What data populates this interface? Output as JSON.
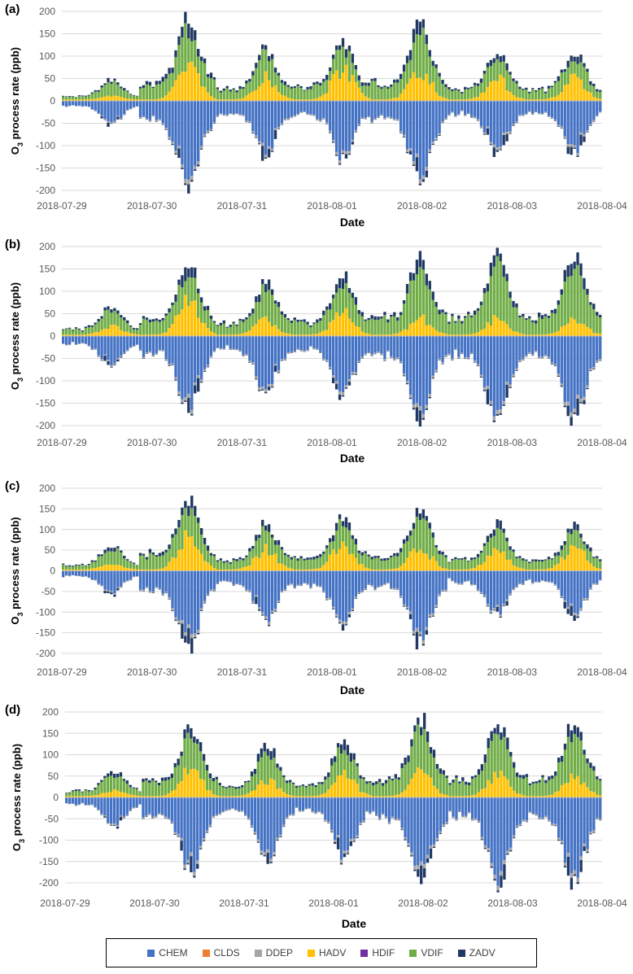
{
  "colors": {
    "CHEM": "#4472C4",
    "CLDS": "#ED7D31",
    "DDEP": "#A5A5A5",
    "HADV": "#FFC000",
    "HDIF": "#7030A0",
    "VDIF": "#70AD47",
    "ZADV": "#203864"
  },
  "legend": {
    "items": [
      "CHEM",
      "CLDS",
      "DDEP",
      "HADV",
      "HDIF",
      "VDIF",
      "ZADV"
    ]
  },
  "chart_data": [
    {
      "panel": "(a)",
      "type": "bar",
      "stacked": true,
      "ylabel": "O3 process rate (ppb)",
      "xlabel": "Date",
      "ylim": [
        -200,
        200
      ],
      "yticks": [
        200,
        150,
        100,
        50,
        0,
        -50,
        -100,
        -150,
        -200
      ],
      "xtick_labels": [
        "2018-07-29",
        "2018-07-30",
        "2018-07-31",
        "2018-08-01",
        "2018-08-02",
        "2018-08-03",
        "2018-08-04"
      ],
      "daily_peaks": [
        {
          "pos_peak": 50,
          "neg_peak": -55,
          "hadv_peak": 8
        },
        {
          "pos_peak": 190,
          "neg_peak": -200,
          "hadv_peak": 105
        },
        {
          "pos_peak": 120,
          "neg_peak": -130,
          "hadv_peak": 55
        },
        {
          "pos_peak": 140,
          "neg_peak": -135,
          "hadv_peak": 80
        },
        {
          "pos_peak": 180,
          "neg_peak": -185,
          "hadv_peak": 75
        },
        {
          "pos_peak": 115,
          "neg_peak": -125,
          "hadv_peak": 50
        }
      ]
    },
    {
      "panel": "(b)",
      "type": "bar",
      "stacked": true,
      "ylabel": "O3 process rate (ppb)",
      "xlabel": "Date",
      "ylim": [
        -200,
        200
      ],
      "yticks": [
        200,
        150,
        100,
        50,
        0,
        -50,
        -100,
        -150,
        -200
      ],
      "xtick_labels": [
        "2018-07-29",
        "2018-07-30",
        "2018-07-31",
        "2018-08-01",
        "2018-08-02",
        "2018-08-03",
        "2018-08-04"
      ],
      "daily_peaks": [
        {
          "pos_peak": 70,
          "neg_peak": -75,
          "hadv_peak": 20
        },
        {
          "pos_peak": 168,
          "neg_peak": -170,
          "hadv_peak": 80
        },
        {
          "pos_peak": 120,
          "neg_peak": -130,
          "hadv_peak": 35
        },
        {
          "pos_peak": 140,
          "neg_peak": -135,
          "hadv_peak": 60
        },
        {
          "pos_peak": 185,
          "neg_peak": -185,
          "hadv_peak": 40
        },
        {
          "pos_peak": 185,
          "neg_peak": -198,
          "hadv_peak": 40
        }
      ]
    },
    {
      "panel": "(c)",
      "type": "bar",
      "stacked": true,
      "ylabel": "O3 process rate (ppb)",
      "xlabel": "Date",
      "ylim": [
        -200,
        200
      ],
      "yticks": [
        200,
        150,
        100,
        50,
        0,
        -50,
        -100,
        -150,
        -200
      ],
      "xtick_labels": [
        "2018-07-29",
        "2018-07-30",
        "2018-07-31",
        "2018-08-01",
        "2018-08-02",
        "2018-08-03",
        "2018-08-04"
      ],
      "daily_peaks": [
        {
          "pos_peak": 65,
          "neg_peak": -60,
          "hadv_peak": 15
        },
        {
          "pos_peak": 175,
          "neg_peak": -198,
          "hadv_peak": 95
        },
        {
          "pos_peak": 118,
          "neg_peak": -128,
          "hadv_peak": 55
        },
        {
          "pos_peak": 130,
          "neg_peak": -140,
          "hadv_peak": 70
        },
        {
          "pos_peak": 155,
          "neg_peak": -180,
          "hadv_peak": 60
        },
        {
          "pos_peak": 115,
          "neg_peak": -115,
          "hadv_peak": 60
        }
      ]
    },
    {
      "panel": "(d)",
      "type": "bar",
      "stacked": true,
      "ylabel": "O3 process rate (ppb)",
      "xlabel": "Date",
      "ylim": [
        -200,
        200
      ],
      "yticks": [
        200,
        150,
        100,
        50,
        0,
        -50,
        -100,
        -150,
        -200
      ],
      "xtick_labels": [
        "2018-07-29",
        "2018-07-30",
        "2018-07-31",
        "2018-08-01",
        "2018-08-02",
        "2018-08-03",
        "2018-08-04"
      ],
      "daily_peaks": [
        {
          "pos_peak": 65,
          "neg_peak": -70,
          "hadv_peak": 15
        },
        {
          "pos_peak": 170,
          "neg_peak": -180,
          "hadv_peak": 70
        },
        {
          "pos_peak": 130,
          "neg_peak": -150,
          "hadv_peak": 40
        },
        {
          "pos_peak": 140,
          "neg_peak": -150,
          "hadv_peak": 55
        },
        {
          "pos_peak": 190,
          "neg_peak": -205,
          "hadv_peak": 60
        },
        {
          "pos_peak": 185,
          "neg_peak": -205,
          "hadv_peak": 55
        }
      ]
    }
  ]
}
